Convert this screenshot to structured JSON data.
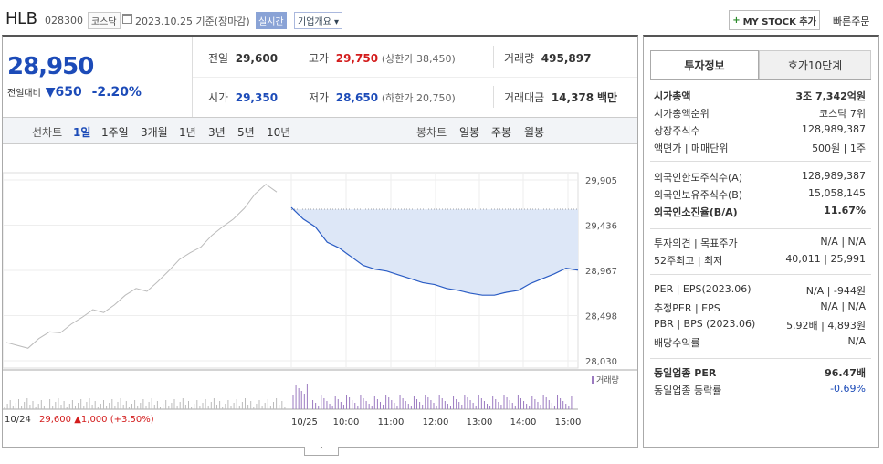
{
  "header": {
    "name": "HLB",
    "code": "028300",
    "market": "코스닥",
    "date": "2023.10.25  기준(장마감)",
    "realtime": "실시간",
    "corp_info": "기업개요",
    "my_stock": "MY STOCK 추가",
    "quick_order": "빠른주문"
  },
  "quote": {
    "price": "28,950",
    "change_label": "전일대비",
    "change": "650",
    "change_pct": "-2.20%",
    "prev_label": "전일",
    "prev": "29,600",
    "high_label": "고가",
    "high": "29,750",
    "upper_limit": "(상한가 38,450)",
    "volume_label": "거래량",
    "volume": "495,897",
    "open_label": "시가",
    "open": "29,350",
    "low_label": "저가",
    "low": "28,650",
    "lower_limit": "(하한가 20,750)",
    "amount_label": "거래대금",
    "amount": "14,378",
    "amount_unit": "백만"
  },
  "chart_tabs": {
    "line_chart": "선차트",
    "periods": [
      "1일",
      "1주일",
      "3개월",
      "1년",
      "3년",
      "5년",
      "10년"
    ],
    "candle_chart": "봉차트",
    "candles": [
      "일봉",
      "주봉",
      "월봉"
    ]
  },
  "chart_data": {
    "type": "line",
    "series": [
      {
        "values": [
          28220,
          28190,
          28160,
          28260,
          28330,
          28320,
          28410,
          28480,
          28560,
          28530,
          28610,
          28710,
          28780,
          28750,
          28850,
          28960,
          29080,
          29150,
          29210,
          29330,
          29420,
          29500,
          29610,
          29760,
          29860,
          29780
        ]
      },
      {
        "values": [
          29620,
          29500,
          29420,
          29260,
          29200,
          29110,
          29020,
          28980,
          28960,
          28920,
          28880,
          28840,
          28820,
          28780,
          28760,
          28730,
          28710,
          28710,
          28740,
          28760,
          28830,
          28880,
          28930,
          28990,
          28970
        ]
      }
    ],
    "prev_close": 29600,
    "y_ticks": [
      "29,905",
      "29,436",
      "28,967",
      "28,498",
      "28,030"
    ],
    "ylim": [
      28030,
      29905
    ],
    "x_ticks": [
      "10/25",
      "10:00",
      "11:00",
      "12:00",
      "13:00",
      "14:00",
      "15:00"
    ],
    "volume_label": "거래량"
  },
  "prev_day": {
    "date": "10/24",
    "close": "29,600",
    "change": "1,000",
    "pct": "(+3.50%)"
  },
  "panel": {
    "tabs": [
      "투자정보",
      "호가10단계"
    ],
    "rows1": [
      {
        "k": "시가총액",
        "v": "3조 7,342억원"
      },
      {
        "k": "시가총액순위",
        "v": "코스닥 7위"
      },
      {
        "k": "상장주식수",
        "v": "128,989,387"
      },
      {
        "k": "액면가 | 매매단위",
        "v": "500원 | 1주"
      }
    ],
    "rows2": [
      {
        "k": "외국인한도주식수(A)",
        "v": "128,989,387"
      },
      {
        "k": "외국인보유주식수(B)",
        "v": "15,058,145"
      },
      {
        "k": "외국인소진율(B/A)",
        "v": "11.67%"
      }
    ],
    "rows3": [
      {
        "k": "투자의견 | 목표주가",
        "v": "N/A | N/A"
      },
      {
        "k": "52주최고 | 최저",
        "v": "40,011 | 25,991"
      }
    ],
    "rows4": [
      {
        "k": "PER | EPS(2023.06)",
        "v": "N/A | -944원"
      },
      {
        "k": "추정PER | EPS",
        "v": "N/A | N/A"
      },
      {
        "k": "PBR | BPS (2023.06)",
        "v": "5.92배 | 4,893원"
      },
      {
        "k": "배당수익률",
        "v": "N/A"
      }
    ],
    "rows5": [
      {
        "k": "동일업종 PER",
        "v": "96.47배"
      },
      {
        "k": "동일업종 등락률",
        "v": "-0.69%"
      }
    ],
    "colors": {
      "up": "#d31c1c",
      "down": "#1c4bb8"
    }
  }
}
